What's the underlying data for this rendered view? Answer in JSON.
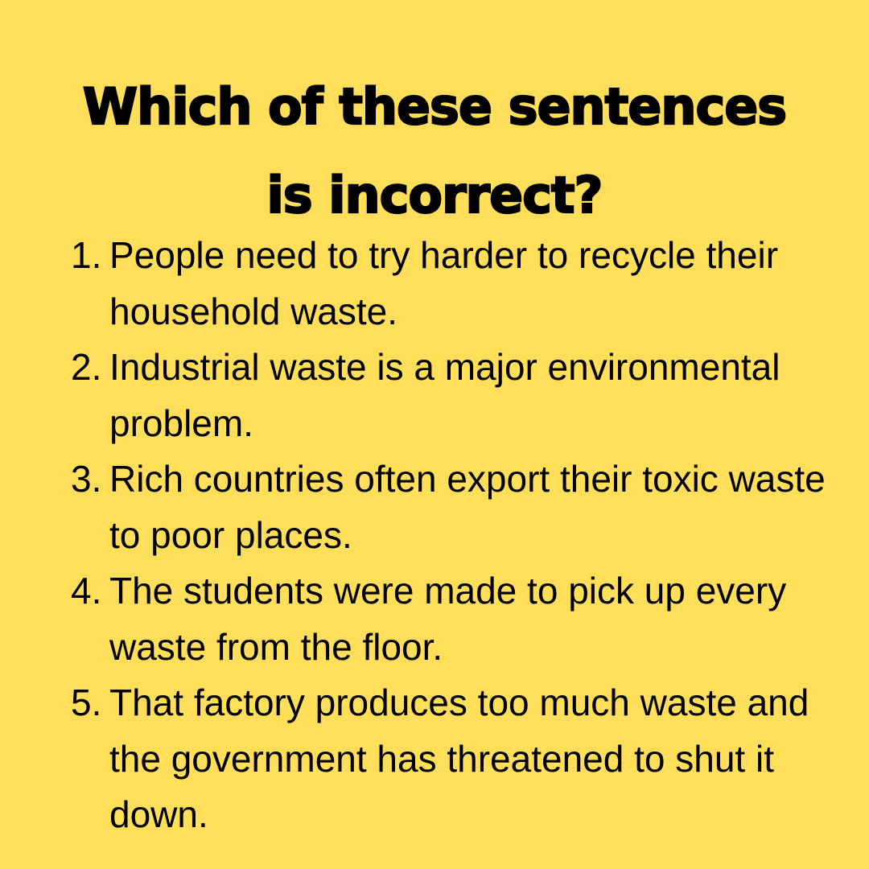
{
  "background_color": "#FFDE59",
  "text_color": "#000000",
  "title": {
    "line1": "Which of these sentences",
    "line2": "is incorrect?"
  },
  "sentences": [
    {
      "number": "1.",
      "text": "People need to try harder to recycle their household waste."
    },
    {
      "number": "2.",
      "text": "Industrial waste is a major environmental problem."
    },
    {
      "number": "3.",
      "text": "Rich countries often export their toxic waste to poor places."
    },
    {
      "number": "4.",
      "text": "The students were made to pick up every waste from the floor."
    },
    {
      "number": "5.",
      "text": "That factory produces too much waste and the government has threatened to shut it down."
    }
  ]
}
